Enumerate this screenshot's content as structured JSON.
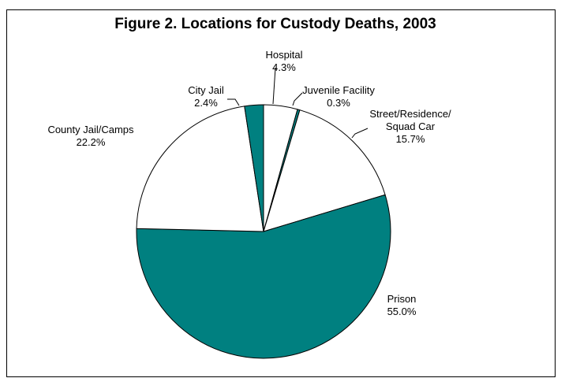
{
  "chart_data": {
    "type": "pie",
    "title": "Figure 2.  Locations for Custody Deaths, 2003",
    "slices": [
      {
        "label": "Hospital",
        "value": 4.3,
        "value_label": "4.3%",
        "color": "#ffffff"
      },
      {
        "label": "Juvenile Facility",
        "value": 0.3,
        "value_label": "0.3%",
        "color": "#008080"
      },
      {
        "label": "Street/Residence/\nSquad Car",
        "value": 15.7,
        "value_label": "15.7%",
        "color": "#ffffff"
      },
      {
        "label": "Prison",
        "value": 55.0,
        "value_label": "55.0%",
        "color": "#008080"
      },
      {
        "label": "County Jail/Camps",
        "value": 22.2,
        "value_label": "22.2%",
        "color": "#ffffff"
      },
      {
        "label": "City Jail",
        "value": 2.4,
        "value_label": "2.4%",
        "color": "#008080"
      }
    ],
    "start_angle_deg": 0,
    "legend": "none"
  }
}
